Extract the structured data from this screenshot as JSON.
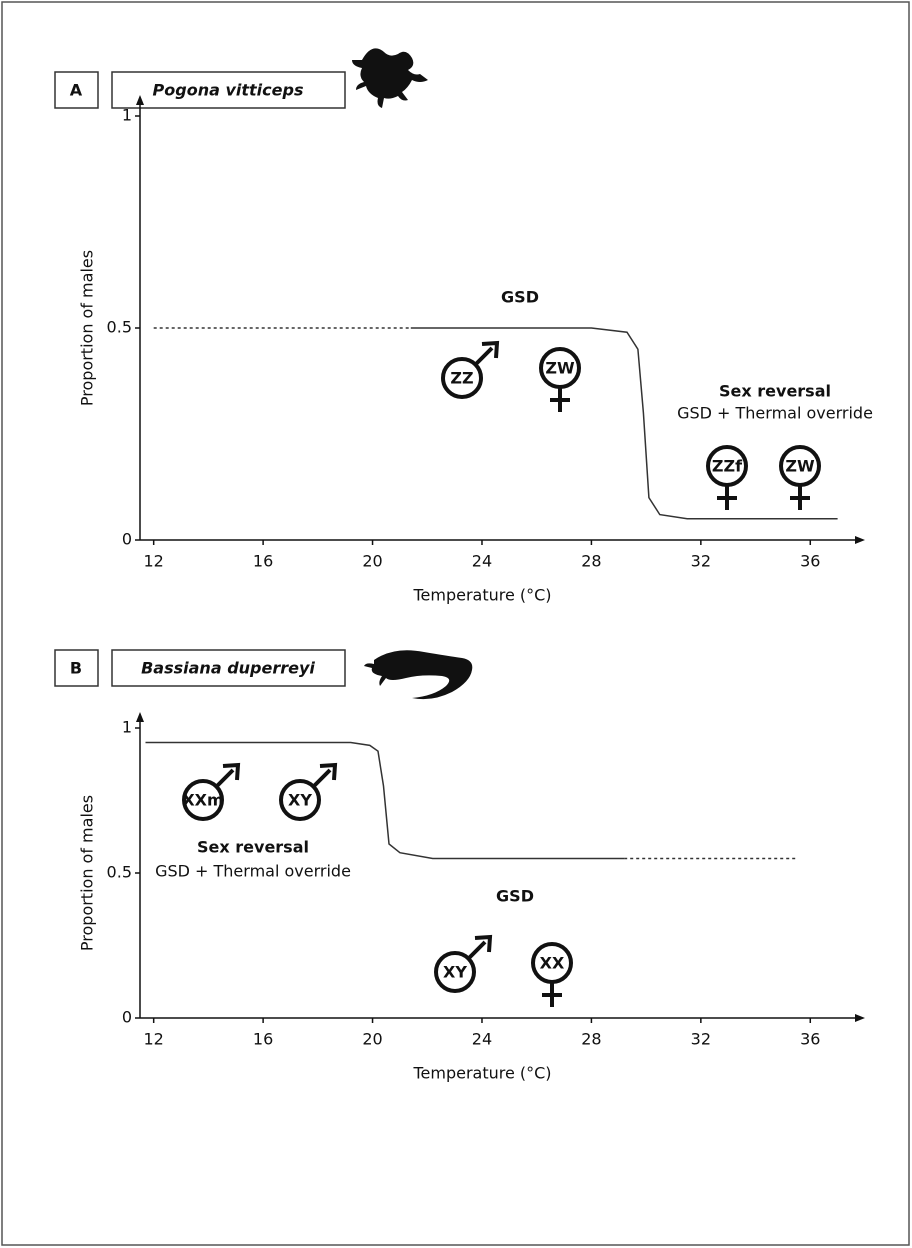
{
  "chart_data": [
    {
      "type": "line",
      "panel": "A",
      "title": "Pogona vitticeps",
      "x_label": "Temperature (°C)",
      "y_label": "Proportion of males",
      "xlim": [
        11.5,
        38
      ],
      "ylim": [
        0,
        1
      ],
      "xticks": [
        12,
        16,
        20,
        24,
        28,
        32,
        36
      ],
      "yticks": [
        0,
        0.5,
        1
      ],
      "series": [
        {
          "color": "#333333",
          "style": "dashed",
          "x": [
            12,
            21.4
          ],
          "values": [
            0.5,
            0.5
          ]
        },
        {
          "color": "#333333",
          "style": "solid",
          "x": [
            21.4,
            28,
            29.3,
            29.7,
            29.9,
            30.1,
            30.5,
            31.5,
            37
          ],
          "values": [
            0.5,
            0.5,
            0.49,
            0.45,
            0.3,
            0.1,
            0.06,
            0.05,
            0.05
          ]
        }
      ],
      "annotations": [
        "GSD",
        "Sex reversal",
        "GSD + Thermal override"
      ],
      "symbols": [
        {
          "label": "ZZ",
          "sex": "male"
        },
        {
          "label": "ZW",
          "sex": "female"
        },
        {
          "label": "ZZf",
          "sex": "female"
        },
        {
          "label": "ZW",
          "sex": "female"
        }
      ]
    },
    {
      "type": "line",
      "panel": "B",
      "title": "Bassiana duperreyi",
      "x_label": "Temperature (°C)",
      "y_label": "Proportion of males",
      "xlim": [
        11.5,
        38
      ],
      "ylim": [
        0,
        1
      ],
      "xticks": [
        12,
        16,
        20,
        24,
        28,
        32,
        36
      ],
      "yticks": [
        0,
        0.5,
        1
      ],
      "series": [
        {
          "color": "#333333",
          "style": "solid",
          "x": [
            11.7,
            19.2,
            19.9,
            20.2,
            20.4,
            20.6,
            21,
            22.2,
            29.2
          ],
          "values": [
            0.95,
            0.95,
            0.94,
            0.92,
            0.8,
            0.6,
            0.57,
            0.55,
            0.55
          ]
        },
        {
          "color": "#333333",
          "style": "dashed",
          "x": [
            29.2,
            35.5
          ],
          "values": [
            0.55,
            0.55
          ]
        }
      ],
      "annotations": [
        "Sex reversal",
        "GSD + Thermal override",
        "GSD"
      ],
      "symbols": [
        {
          "label": "XXm",
          "sex": "male"
        },
        {
          "label": "XY",
          "sex": "male"
        },
        {
          "label": "XY",
          "sex": "male"
        },
        {
          "label": "XX",
          "sex": "female"
        }
      ]
    }
  ]
}
